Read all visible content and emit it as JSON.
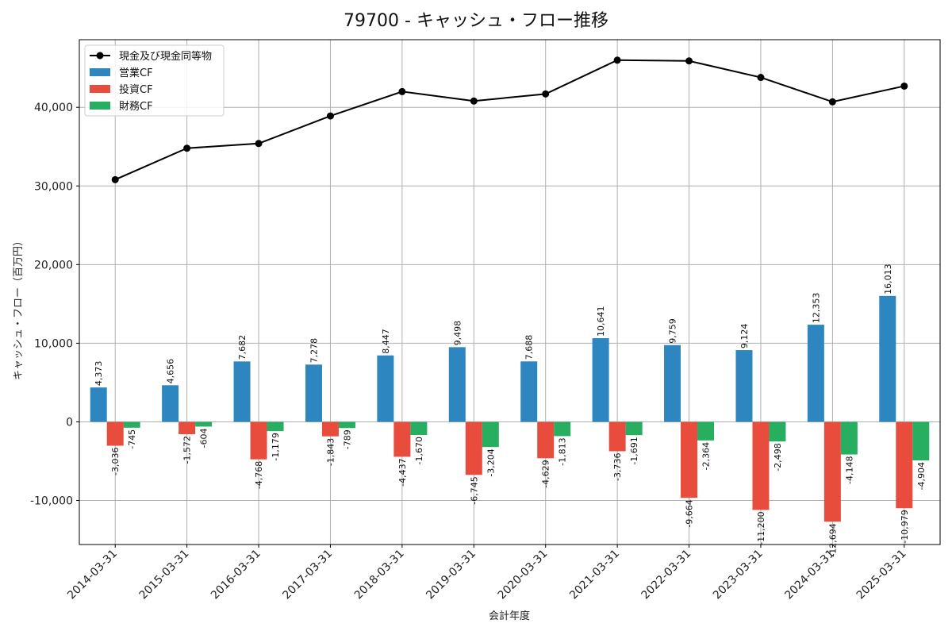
{
  "chart_data": {
    "type": "bar",
    "title": "79700 - キャッシュ・フロー推移",
    "xlabel": "会計年度",
    "ylabel": "キャッシュ・フロー（百万円）",
    "ylim": [
      -15600,
      48600
    ],
    "yticks": [
      -10000,
      0,
      10000,
      20000,
      30000,
      40000
    ],
    "ytick_labels": [
      "-10,000",
      "0",
      "10,000",
      "20,000",
      "30,000",
      "40,000"
    ],
    "grid": true,
    "legend_position": "top-left",
    "categories": [
      "2014-03-31",
      "2015-03-31",
      "2016-03-31",
      "2017-03-31",
      "2018-03-31",
      "2019-03-31",
      "2020-03-31",
      "2021-03-31",
      "2022-03-31",
      "2023-03-31",
      "2024-03-31",
      "2025-03-31"
    ],
    "series": [
      {
        "name": "営業CF",
        "kind": "bar",
        "color": "#2e86c1",
        "values": [
          4373,
          4656,
          7682,
          7278,
          8447,
          9498,
          7688,
          10641,
          9759,
          9124,
          12353,
          16013
        ],
        "labels": [
          "4,373",
          "4,656",
          "7,682",
          "7,278",
          "8,447",
          "9,498",
          "7,688",
          "10,641",
          "9,759",
          "9,124",
          "12,353",
          "16,013"
        ]
      },
      {
        "name": "投資CF",
        "kind": "bar",
        "color": "#e74c3c",
        "values": [
          -3036,
          -1572,
          -4768,
          -1843,
          -4437,
          -6745,
          -4629,
          -3736,
          -9664,
          -11200,
          -12694,
          -10979
        ],
        "labels": [
          "-3,036",
          "-1,572",
          "-4,768",
          "-1,843",
          "-4,437",
          "-6,745",
          "-4,629",
          "-3,736",
          "-9,664",
          "-11,200",
          "-12,694",
          "-10,979"
        ]
      },
      {
        "name": "財務CF",
        "kind": "bar",
        "color": "#27ae60",
        "values": [
          -745,
          -604,
          -1179,
          -789,
          -1670,
          -3204,
          -1813,
          -1691,
          -2364,
          -2498,
          -4148,
          -4904
        ],
        "labels": [
          "-745",
          "-604",
          "-1,179",
          "-789",
          "-1,670",
          "-3,204",
          "-1,813",
          "-1,691",
          "-2,364",
          "-2,498",
          "-4,148",
          "-4,904"
        ]
      },
      {
        "name": "現金及び現金同等物",
        "kind": "line",
        "color": "#000000",
        "values": [
          30800,
          34800,
          35400,
          38900,
          42000,
          40800,
          41700,
          46000,
          45900,
          43800,
          40700,
          42700
        ]
      }
    ]
  }
}
